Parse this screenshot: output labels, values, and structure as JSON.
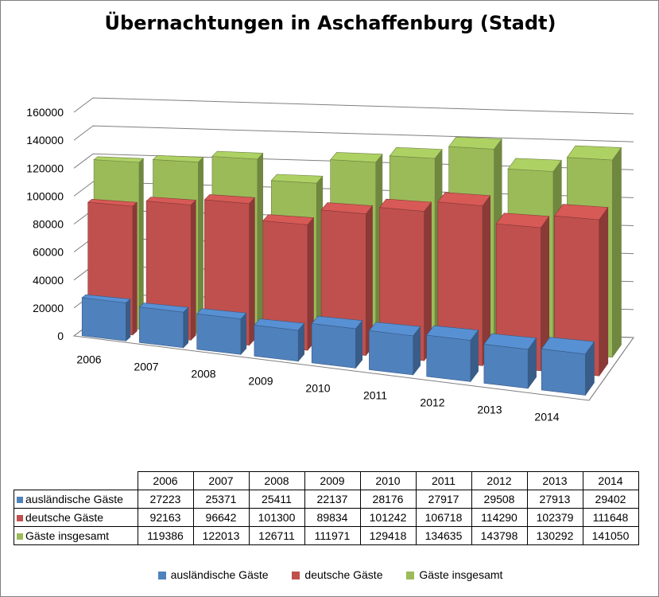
{
  "colors": {
    "blue": "#4f81bd",
    "red": "#c0504d",
    "green": "#9bbb59"
  },
  "chart_data": {
    "type": "bar",
    "title": "Übernachtungen in Aschaffenburg (Stadt)",
    "categories": [
      "2006",
      "2007",
      "2008",
      "2009",
      "2010",
      "2011",
      "2012",
      "2013",
      "2014"
    ],
    "y_ticks": [
      "0",
      "20000",
      "40000",
      "60000",
      "80000",
      "100000",
      "120000",
      "140000",
      "160000"
    ],
    "ylim": [
      0,
      160000
    ],
    "grid": true,
    "legend_position": "bottom",
    "series": [
      {
        "name": "ausländische Gäste",
        "color": "#4f81bd",
        "values": [
          27223,
          25371,
          25411,
          22137,
          28176,
          27917,
          29508,
          27913,
          29402
        ],
        "labels": [
          "27223",
          "25371",
          "25411",
          "22137",
          "28176",
          "27917",
          "29508",
          "27913",
          "29402"
        ]
      },
      {
        "name": "deutsche Gäste",
        "color": "#c0504d",
        "values": [
          92163,
          96642,
          101300,
          89834,
          101242,
          106718,
          114290,
          102379,
          111648
        ],
        "labels": [
          "92163",
          "96642",
          "101300",
          "89834",
          "101242",
          "106718",
          "114290",
          "102379",
          "111648"
        ]
      },
      {
        "name": "Gäste insgesamt",
        "color": "#9bbb59",
        "values": [
          119386,
          122013,
          126711,
          111971,
          129418,
          134635,
          143798,
          130292,
          141050
        ],
        "labels": [
          "119386",
          "122013",
          "126711",
          "111971",
          "129418",
          "134635",
          "143798",
          "130292",
          "141050"
        ]
      }
    ]
  }
}
